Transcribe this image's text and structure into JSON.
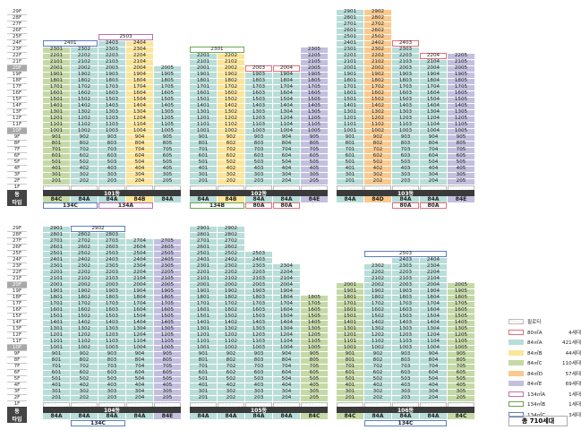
{
  "labels": {
    "dong": "동",
    "type": "타입",
    "total": "총 710세대"
  },
  "floors_top": [
    "29F",
    "28F",
    "27F",
    "26F",
    "25F",
    "24F",
    "23F",
    "22F",
    "21F",
    "20F",
    "19F",
    "18F",
    "17F",
    "16F",
    "15F",
    "14F",
    "13F",
    "12F",
    "11F",
    "10F",
    "9F",
    "8F",
    "7F",
    "6F",
    "5F",
    "4F",
    "3F",
    "2F",
    "1F"
  ],
  "floors_bottom": [
    "29F",
    "28F",
    "27F",
    "26F",
    "25F",
    "24F",
    "23F",
    "22F",
    "21F",
    "20F",
    "19F",
    "18F",
    "17F",
    "16F",
    "15F",
    "14F",
    "13F",
    "12F",
    "11F",
    "10F",
    "9F",
    "8F",
    "7F",
    "6F",
    "5F",
    "4F",
    "3F",
    "2F",
    "1F"
  ],
  "colors": {
    "84A": "#b9ddd8",
    "84B": "#fbe59a",
    "84C": "#c5d9a6",
    "84D": "#f9c98d",
    "84E": "#c3bfdf",
    "piloti": "#ffffff",
    "80A": "#e0707a",
    "134A": "#c06fb0",
    "134B": "#6aa84f",
    "134C": "#5b7fbf"
  },
  "buildings": [
    {
      "name": "101동",
      "top": true,
      "types": [
        "84C",
        "84A",
        "84A",
        "84B",
        "84A"
      ],
      "lines": [
        {
          "type": "84C",
          "tier": "A",
          "max": 24
        },
        {
          "type": "84A",
          "tier": "A",
          "max": 24
        },
        {
          "type": "84A",
          "tier": "A",
          "max": 25
        },
        {
          "type": "84B",
          "tier": "A",
          "max": 25
        },
        {
          "type": "84A",
          "tier": "A",
          "max": 20
        }
      ],
      "penthouses": [
        {
          "label": "2401",
          "type": "134C",
          "col": 0,
          "span": 2,
          "floor": 24
        },
        {
          "label": "2503",
          "type": "134A",
          "col": 2,
          "span": 2,
          "floor": 25
        }
      ],
      "bottom_types": [
        {
          "label": "134C",
          "type": "134C",
          "col": 0,
          "span": 2
        },
        {
          "label": "134A",
          "type": "134A",
          "col": 2,
          "span": 2
        }
      ]
    },
    {
      "name": "102동",
      "top": true,
      "types": [
        "84A",
        "84B",
        "84A",
        "84A",
        "84E"
      ],
      "lines": [
        {
          "type": "84A",
          "tier": "A",
          "max": 22
        },
        {
          "type": "84B",
          "tier": "A",
          "max": 22
        },
        {
          "type": "84A",
          "tier": "A",
          "max": 20
        },
        {
          "type": "84A",
          "tier": "A",
          "max": 20
        },
        {
          "type": "84E",
          "tier": "A",
          "max": 23
        }
      ],
      "penthouses": [
        {
          "label": "2301",
          "type": "134B",
          "col": 0,
          "span": 2,
          "floor": 23
        },
        {
          "label": "2003",
          "type": "80A",
          "col": 2,
          "span": 1,
          "floor": 20
        },
        {
          "label": "2004",
          "type": "80A",
          "col": 3,
          "span": 1,
          "floor": 20
        }
      ],
      "bottom_types": [
        {
          "label": "134B",
          "type": "134B",
          "col": 0,
          "span": 2
        },
        {
          "label": "80A",
          "type": "80A",
          "col": 2,
          "span": 1
        },
        {
          "label": "80A",
          "type": "80A",
          "col": 3,
          "span": 1
        }
      ]
    },
    {
      "name": "103동",
      "top": true,
      "types": [
        "84A",
        "84D",
        "84A",
        "84A",
        "84E"
      ],
      "lines": [
        {
          "type": "84A",
          "tier": "A",
          "max": 29
        },
        {
          "type": "84D",
          "tier": "A",
          "max": 29
        },
        {
          "type": "84A",
          "tier": "A",
          "max": 24
        },
        {
          "type": "84A",
          "tier": "A",
          "max": 22
        },
        {
          "type": "84E",
          "tier": "A",
          "max": 22
        }
      ],
      "penthouses": [
        {
          "label": "2403",
          "type": "80A",
          "col": 2,
          "span": 1,
          "floor": 24
        },
        {
          "label": "2204",
          "type": "80A",
          "col": 3,
          "span": 1,
          "floor": 22
        }
      ],
      "bottom_types": [
        {
          "label": "80A",
          "type": "80A",
          "col": 2,
          "span": 1
        },
        {
          "label": "80A",
          "type": "80A",
          "col": 3,
          "span": 1
        }
      ]
    },
    {
      "name": "104동",
      "top": false,
      "types": [
        "84A",
        "84A",
        "84A",
        "84A",
        "84E"
      ],
      "lines": [
        {
          "type": "84A",
          "tier": "B",
          "max": 29
        },
        {
          "type": "84A",
          "tier": "B",
          "max": 29
        },
        {
          "type": "84A",
          "tier": "B",
          "max": 28
        },
        {
          "type": "84A",
          "tier": "B",
          "max": 27
        },
        {
          "type": "84E",
          "tier": "B",
          "max": 27
        }
      ],
      "penthouses": [
        {
          "label": "2902",
          "type": "134C",
          "col": 1,
          "span": 2,
          "floor": 29
        }
      ],
      "bottom_types": [
        {
          "label": "134C",
          "type": "134C",
          "col": 1,
          "span": 2
        }
      ]
    },
    {
      "name": "105동",
      "top": false,
      "types": [
        "84A",
        "84A",
        "84A",
        "84A",
        "84C"
      ],
      "lines": [
        {
          "type": "84A",
          "tier": "B",
          "max": 29
        },
        {
          "type": "84A",
          "tier": "B",
          "max": 29
        },
        {
          "type": "84A",
          "tier": "B",
          "max": 25
        },
        {
          "type": "84A",
          "tier": "B",
          "max": 23
        },
        {
          "type": "84C",
          "tier": "B",
          "max": 18
        }
      ],
      "penthouses": [],
      "bottom_types": []
    },
    {
      "name": "106동",
      "top": false,
      "types": [
        "84C",
        "84A",
        "84A",
        "84A",
        "84C"
      ],
      "lines": [
        {
          "type": "84C",
          "tier": "B",
          "max": 20
        },
        {
          "type": "84A",
          "tier": "B",
          "max": 23
        },
        {
          "type": "84A",
          "tier": "B",
          "max": 24
        },
        {
          "type": "84A",
          "tier": "B",
          "max": 24
        },
        {
          "type": "84C",
          "tier": "B",
          "max": 20
        }
      ],
      "penthouses": [
        {
          "label": "2503",
          "type": "134C",
          "col": 1,
          "span": 3,
          "floor": 25
        }
      ],
      "bottom_types": [
        {
          "label": "134C",
          "type": "134C",
          "col": 1,
          "span": 3
        }
      ]
    }
  ],
  "legend": [
    {
      "label": "필로티",
      "count": "",
      "type": "piloti"
    },
    {
      "label": "80㎡A",
      "count": "4세대",
      "type": "80A"
    },
    {
      "label": "84㎡A",
      "count": "421세대",
      "type": "84A"
    },
    {
      "label": "84㎡B",
      "count": "44세대",
      "type": "84B"
    },
    {
      "label": "84㎡C",
      "count": "110세대",
      "type": "84C"
    },
    {
      "label": "84㎡D",
      "count": "57세대",
      "type": "84D"
    },
    {
      "label": "84㎡E",
      "count": "69세대",
      "type": "84E"
    },
    {
      "label": "134㎡A",
      "count": "1세대",
      "type": "134A"
    },
    {
      "label": "134㎡B",
      "count": "1세대",
      "type": "134B"
    },
    {
      "label": "134㎡C",
      "count": "3세대",
      "type": "134C"
    }
  ]
}
